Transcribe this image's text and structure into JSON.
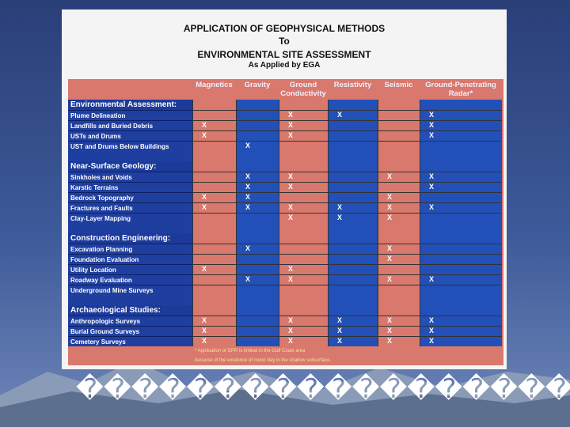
{
  "title": [
    "APPLICATION OF GEOPHYSICAL METHODS",
    "To",
    "ENVIRONMENTAL SITE ASSESSMENT",
    "As Applied by EGA"
  ],
  "table": {
    "columns": [
      "Magnetics",
      "Gravity",
      "Ground Conductivity",
      "Resistivity",
      "Seismic",
      "Ground-Penetrating Radar*"
    ],
    "sections": [
      {
        "name": "Environmental Assessment:",
        "rows": [
          {
            "label": "Plume Delineation",
            "cells": [
              null,
              null,
              "X",
              "X",
              null,
              "X"
            ]
          },
          {
            "label": "Landfills and Buried Debris",
            "cells": [
              "X",
              null,
              "X",
              null,
              null,
              "X"
            ]
          },
          {
            "label": "USTs and Drums",
            "cells": [
              "X",
              null,
              "X",
              null,
              null,
              "X"
            ]
          },
          {
            "label": "UST and Drums Below Buildings",
            "cells": [
              null,
              "X",
              null,
              null,
              null,
              null
            ]
          }
        ]
      },
      {
        "name": "Near-Surface Geology:",
        "rows": [
          {
            "label": "Sinkholes and Voids",
            "cells": [
              null,
              "X",
              "X",
              null,
              "X",
              "X"
            ]
          },
          {
            "label": "Karstic Terrains",
            "cells": [
              null,
              "X",
              "X",
              null,
              null,
              "X"
            ]
          },
          {
            "label": "Bedrock Topography",
            "cells": [
              "X",
              "X",
              null,
              null,
              "X",
              null
            ]
          },
          {
            "label": "Fractures and Faults",
            "cells": [
              "X",
              "X",
              "X",
              "X",
              "X",
              "X"
            ]
          },
          {
            "label": "Clay-Layer Mapping",
            "cells": [
              null,
              null,
              "X",
              "X",
              "X",
              null
            ]
          }
        ]
      },
      {
        "name": "Construction Engineering:",
        "rows": [
          {
            "label": "Excavation Planning",
            "cells": [
              null,
              "X",
              null,
              null,
              "X",
              null
            ]
          },
          {
            "label": "Foundation Evaluation",
            "cells": [
              null,
              null,
              null,
              null,
              "X",
              null
            ]
          },
          {
            "label": "Utility Location",
            "cells": [
              "X",
              null,
              "X",
              null,
              null,
              null
            ]
          },
          {
            "label": "Roadway Evaluation",
            "cells": [
              null,
              "X",
              "X",
              null,
              "X",
              "X"
            ]
          },
          {
            "label": "Underground Mine Surveys",
            "cells": [
              null,
              null,
              null,
              null,
              null,
              null
            ]
          }
        ]
      },
      {
        "name": "Archaeological Studies:",
        "rows": [
          {
            "label": "Anthropologic Surveys",
            "cells": [
              "X",
              null,
              "X",
              "X",
              "X",
              "X"
            ]
          },
          {
            "label": "Burial Ground Surveys",
            "cells": [
              "X",
              null,
              "X",
              "X",
              "X",
              "X"
            ]
          },
          {
            "label": "Cemetery Surveys",
            "cells": [
              "X",
              null,
              "X",
              "X",
              "X",
              "X"
            ]
          }
        ]
      }
    ],
    "footnote": [
      "* Application of GPR is limited in the Gulf Coast area",
      "because of the existence of moist clay in the shallow subsurface."
    ]
  },
  "caption": "����������������������������"
}
